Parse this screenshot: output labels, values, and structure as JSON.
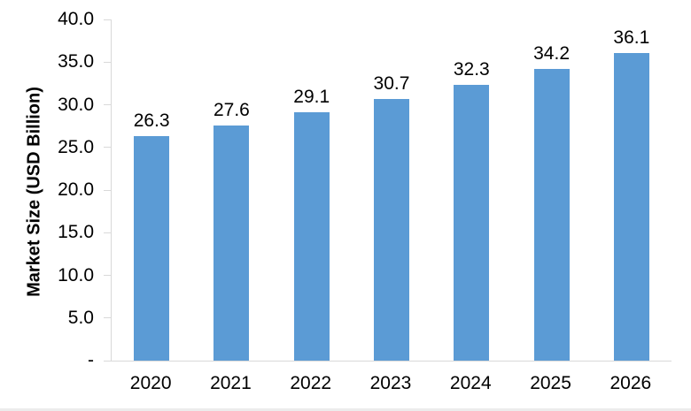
{
  "chart_data": {
    "type": "bar",
    "title": "",
    "categories": [
      "2020",
      "2021",
      "2022",
      "2023",
      "2024",
      "2025",
      "2026"
    ],
    "values": [
      26.3,
      27.6,
      29.1,
      30.7,
      32.3,
      34.2,
      36.1
    ],
    "value_labels": [
      "26.3",
      "27.6",
      "29.1",
      "30.7",
      "32.3",
      "34.2",
      "36.1"
    ],
    "xlabel": "",
    "ylabel": "Market Size (USD Billion)",
    "ylim": [
      0,
      40
    ],
    "y_tick_step": 5,
    "y_tick_labels_top_to_bottom": [
      "40.0",
      "35.0",
      "30.0",
      "25.0",
      "20.0",
      "15.0",
      "10.0",
      "5.0",
      "-"
    ],
    "grid": false,
    "legend": false,
    "bar_color": "#5B9BD5",
    "axis_color": "#D9D9D9",
    "text_color": "#000000"
  }
}
